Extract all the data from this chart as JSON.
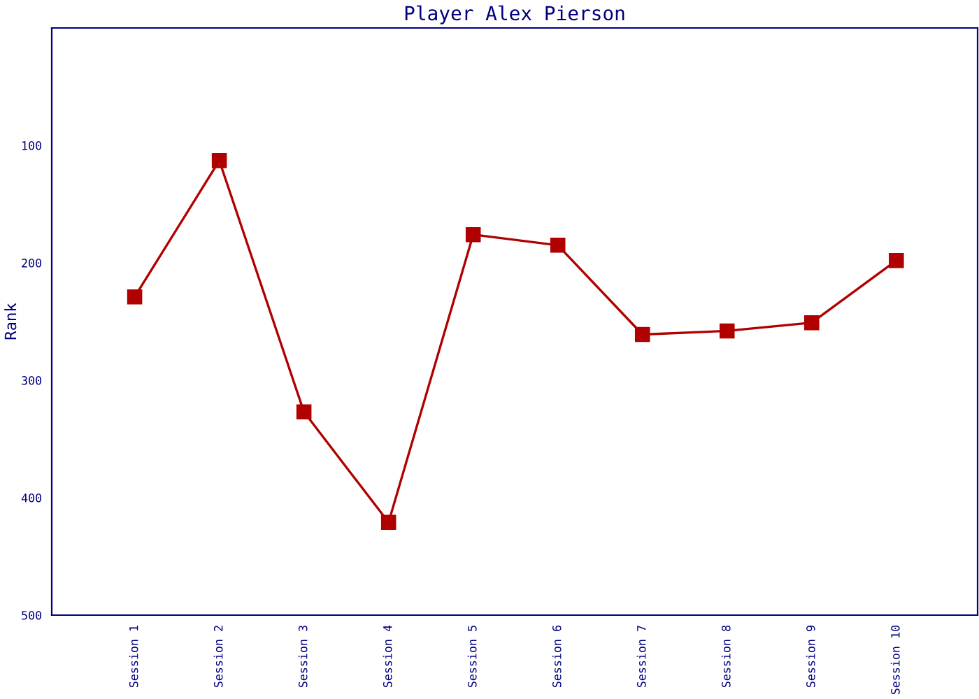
{
  "chart_data": {
    "type": "line",
    "title": "Player Alex Pierson",
    "ylabel": "Rank",
    "categories": [
      "Session 1",
      "Session 2",
      "Session 3",
      "Session 4",
      "Session 5",
      "Session 6",
      "Session 7",
      "Session 8",
      "Session 9",
      "Session 10"
    ],
    "series": [
      {
        "color": "#b00000",
        "values": [
          229,
          113,
          327,
          421,
          176,
          185,
          261,
          258,
          251,
          198
        ]
      }
    ],
    "ylim": [
      500,
      0
    ],
    "yticks": [
      100,
      200,
      300,
      400,
      500
    ],
    "marker": "square",
    "line_style": "solid",
    "grid": false,
    "legend": false
  }
}
